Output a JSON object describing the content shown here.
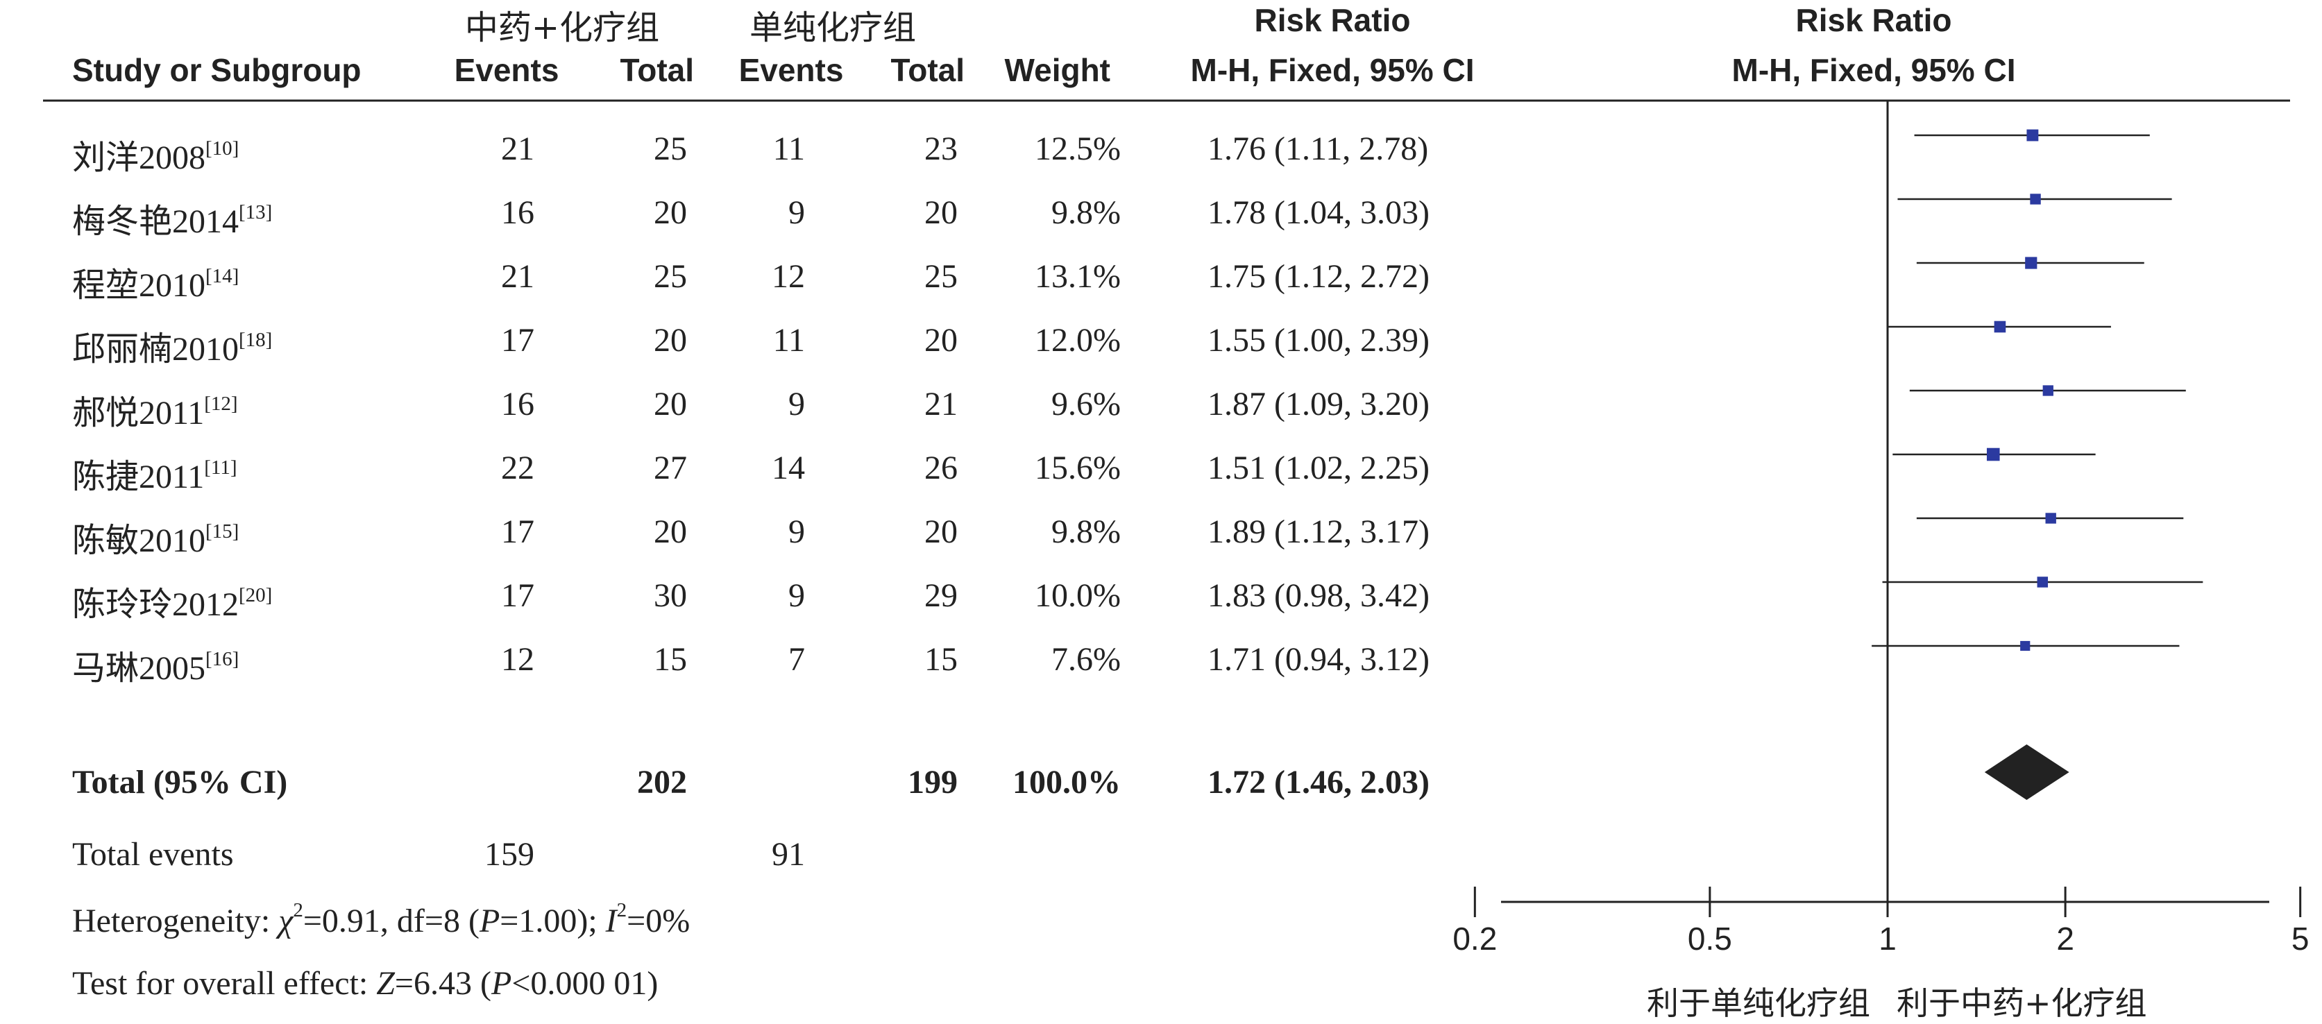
{
  "headers": {
    "group1": "中药+化疗组",
    "group2": "单纯化疗组",
    "study": "Study or Subgroup",
    "events1": "Events",
    "total1": "Total",
    "events2": "Events",
    "total2": "Total",
    "weight": "Weight",
    "rr_table_title": "Risk Ratio",
    "rr_table_method": "M-H, Fixed, 95% CI",
    "rr_plot_title": "Risk Ratio",
    "rr_plot_method": "M-H, Fixed, 95% CI"
  },
  "rows": [
    {
      "name": "刘洋2008",
      "ref": "[10]",
      "e1": "21",
      "t1": "25",
      "e2": "11",
      "t2": "23",
      "weight": "12.5%",
      "ci": "1.76 (1.11, 2.78)"
    },
    {
      "name": "梅冬艳2014",
      "ref": "[13]",
      "e1": "16",
      "t1": "20",
      "e2": "9",
      "t2": "20",
      "weight": "9.8%",
      "ci": "1.78 (1.04, 3.03)"
    },
    {
      "name": "程堃2010",
      "ref": "[14]",
      "e1": "21",
      "t1": "25",
      "e2": "12",
      "t2": "25",
      "weight": "13.1%",
      "ci": "1.75 (1.12, 2.72)"
    },
    {
      "name": "邱丽楠2010",
      "ref": "[18]",
      "e1": "17",
      "t1": "20",
      "e2": "11",
      "t2": "20",
      "weight": "12.0%",
      "ci": "1.55 (1.00, 2.39)"
    },
    {
      "name": "郝悦2011",
      "ref": "[12]",
      "e1": "16",
      "t1": "20",
      "e2": "9",
      "t2": "21",
      "weight": "9.6%",
      "ci": "1.87 (1.09, 3.20)"
    },
    {
      "name": "陈捷2011",
      "ref": "[11]",
      "e1": "22",
      "t1": "27",
      "e2": "14",
      "t2": "26",
      "weight": "15.6%",
      "ci": "1.51 (1.02, 2.25)"
    },
    {
      "name": "陈敏2010",
      "ref": "[15]",
      "e1": "17",
      "t1": "20",
      "e2": "9",
      "t2": "20",
      "weight": "9.8%",
      "ci": "1.89 (1.12, 3.17)"
    },
    {
      "name": "陈玲玲2012",
      "ref": "[20]",
      "e1": "17",
      "t1": "30",
      "e2": "9",
      "t2": "29",
      "weight": "10.0%",
      "ci": "1.83 (0.98, 3.42)"
    },
    {
      "name": "马琳2005",
      "ref": "[16]",
      "e1": "12",
      "t1": "15",
      "e2": "7",
      "t2": "15",
      "weight": "7.6%",
      "ci": "1.71 (0.94, 3.12)"
    }
  ],
  "total": {
    "label": "Total (95% CI)",
    "t1": "202",
    "t2": "199",
    "weight": "100.0%",
    "ci": "1.72 (1.46, 2.03)"
  },
  "total_events": {
    "label": "Total events",
    "e1": "159",
    "e2": "91"
  },
  "heterogeneity": {
    "prefix": "Heterogeneity: ",
    "chi_symbol": "χ",
    "chi_sup": "2",
    "chi_rest": "=0.91, df=8 (",
    "p_symbol": "P",
    "p_rest": "=1.00); ",
    "i_symbol": "I",
    "i_sup": "2",
    "i_rest": "=0%"
  },
  "overall_effect": {
    "prefix": "Test for overall effect: ",
    "z_symbol": "Z",
    "z_rest": "=6.43 (",
    "p_symbol": "P",
    "p_rest": "<0.000 01)"
  },
  "axis": {
    "tick_labels": [
      "0.2",
      "0.5",
      "1",
      "2",
      "5"
    ],
    "favours_left": "利于单纯化疗组",
    "favours_right": "利于中药+化疗组"
  },
  "colors": {
    "study_marker": "#2b3aa0",
    "diamond": "#222222",
    "line": "#222222"
  },
  "chart_data": {
    "type": "forest",
    "scale": "log",
    "xlim": [
      0.2,
      5
    ],
    "ticks": [
      0.2,
      0.5,
      1,
      2,
      5
    ],
    "reference_line": 1,
    "studies": [
      {
        "name": "刘洋2008",
        "rr": 1.76,
        "lower": 1.11,
        "upper": 2.78,
        "weight": 12.5
      },
      {
        "name": "梅冬艳2014",
        "rr": 1.78,
        "lower": 1.04,
        "upper": 3.03,
        "weight": 9.8
      },
      {
        "name": "程堃2010",
        "rr": 1.75,
        "lower": 1.12,
        "upper": 2.72,
        "weight": 13.1
      },
      {
        "name": "邱丽楠2010",
        "rr": 1.55,
        "lower": 1.0,
        "upper": 2.39,
        "weight": 12.0
      },
      {
        "name": "郝悦2011",
        "rr": 1.87,
        "lower": 1.09,
        "upper": 3.2,
        "weight": 9.6
      },
      {
        "name": "陈捷2011",
        "rr": 1.51,
        "lower": 1.02,
        "upper": 2.25,
        "weight": 15.6
      },
      {
        "name": "陈敏2010",
        "rr": 1.89,
        "lower": 1.12,
        "upper": 3.17,
        "weight": 9.8
      },
      {
        "name": "陈玲玲2012",
        "rr": 1.83,
        "lower": 0.98,
        "upper": 3.42,
        "weight": 10.0
      },
      {
        "name": "马琳2005",
        "rr": 1.71,
        "lower": 0.94,
        "upper": 3.12,
        "weight": 7.6
      }
    ],
    "pooled": {
      "rr": 1.72,
      "lower": 1.46,
      "upper": 2.03
    }
  }
}
